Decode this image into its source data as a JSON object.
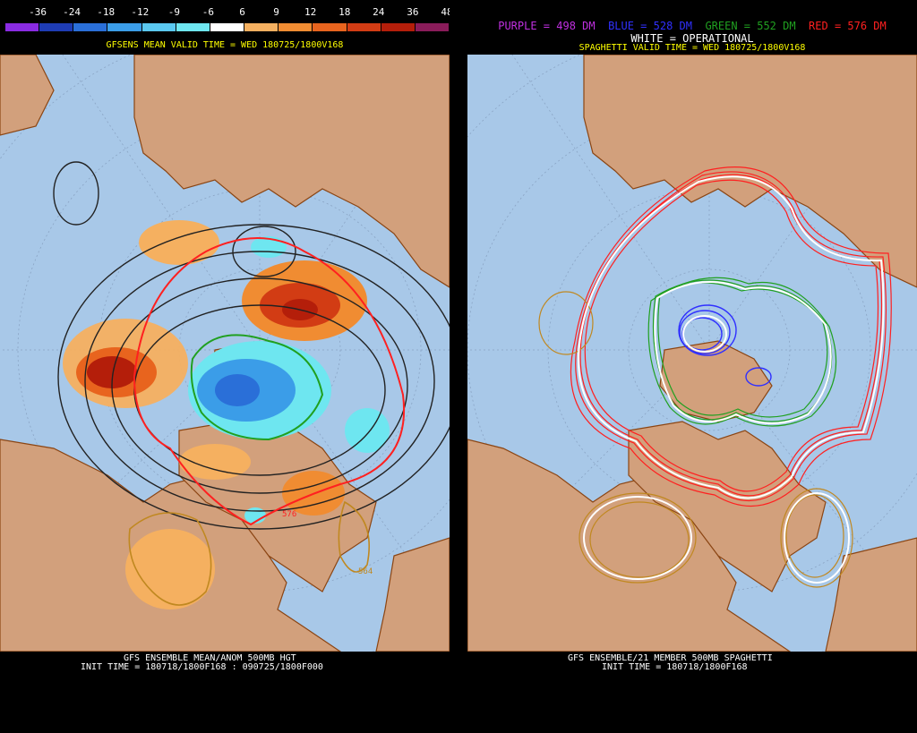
{
  "left": {
    "colorbar": {
      "labels": [
        "-36",
        "-24",
        "-18",
        "-12",
        "-9",
        "-6",
        "6",
        "9",
        "12",
        "18",
        "24",
        "36",
        "48"
      ],
      "colors": [
        "#8a2be2",
        "#1e3cb4",
        "#2a6fd8",
        "#3b9de8",
        "#5ac8f0",
        "#6ee6f0",
        "#ffffff",
        "#f5b060",
        "#f08c32",
        "#e8641e",
        "#d23c14",
        "#b41e0a",
        "#8a1c5a"
      ]
    },
    "title": "GFSENS MEAN VALID TIME = WED 180725/1800V168",
    "contour_labels": [
      "576",
      "564"
    ],
    "bottom_line1": "GFS ENSEMBLE MEAN/ANOM 500MB HGT",
    "bottom_line2": "INIT TIME = 180718/1800F168 : 090725/1800F000"
  },
  "right": {
    "legend": [
      {
        "text": "PURPLE = 498 DM",
        "color": "#c030e0"
      },
      {
        "text": "BLUE = 528 DM",
        "color": "#3030ff"
      },
      {
        "text": "GREEN = 552 DM",
        "color": "#20a020"
      },
      {
        "text": "RED = 576 DM",
        "color": "#ff2020"
      }
    ],
    "operational": "WHITE = OPERATIONAL",
    "title": "SPAGHETTI VALID TIME = WED 180725/1800V168",
    "bottom_line1": "GFS ENSEMBLE/21 MEMBER 500MB SPAGHETTI",
    "bottom_line2": "INIT TIME = 180718/1800F168"
  },
  "colors": {
    "ocean": "#a8c8e8",
    "land": "#d2a07c",
    "coast": "#8b4513",
    "title_yellow": "#ffff00"
  }
}
